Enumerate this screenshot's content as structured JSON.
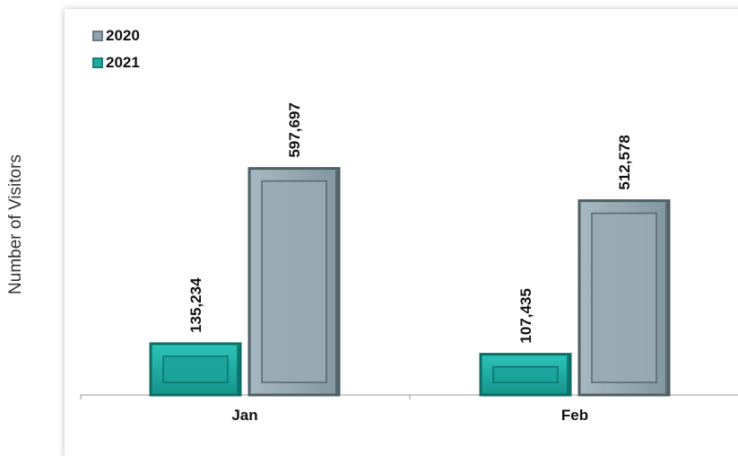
{
  "chart_data": {
    "type": "bar",
    "title": "",
    "xlabel": "",
    "ylabel": "Number of Visitors",
    "categories": [
      "Jan",
      "Feb"
    ],
    "series": [
      {
        "name": "2021",
        "values": [
          135234,
          107435
        ],
        "labels": [
          "135,234",
          "107,435"
        ],
        "color": "#1fa9a0"
      },
      {
        "name": "2020",
        "values": [
          597697,
          512578
        ],
        "labels": [
          "597,697",
          "512,578"
        ],
        "color": "#8fa3ad"
      }
    ],
    "ylim": [
      0,
      680000
    ],
    "grid": false,
    "legend_position": "top-left",
    "legend": [
      {
        "name": "2020",
        "color": "#8fa3ad"
      },
      {
        "name": "2021",
        "color": "#1fa9a0"
      }
    ]
  }
}
